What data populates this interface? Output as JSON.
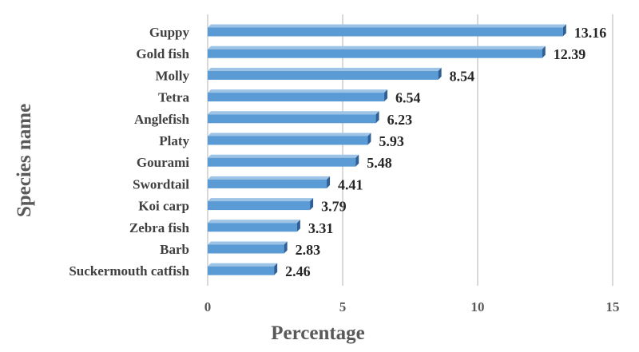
{
  "chart_data": {
    "type": "bar",
    "orientation": "horizontal",
    "title": "",
    "xlabel": "Percentage",
    "ylabel": "Species name",
    "categories": [
      "Guppy",
      "Gold fish",
      "Molly",
      "Tetra",
      "Anglefish",
      "Platy",
      "Gourami",
      "Swordtail",
      "Koi carp",
      "Zebra fish",
      "Barb",
      "Suckermouth catfish"
    ],
    "series": [
      {
        "values": [
          13.16,
          12.39,
          8.54,
          6.54,
          6.23,
          5.93,
          5.48,
          4.41,
          3.79,
          3.31,
          2.83,
          2.46
        ],
        "data_labels": [
          "13.16",
          "12.39",
          "8.54",
          "6.54",
          "6.23",
          "5.93",
          "5.48",
          "4.41",
          "3.79",
          "3.31",
          "2.83",
          "2.46"
        ],
        "color": "#5b9bd5"
      }
    ],
    "xlim": [
      0,
      15
    ],
    "xticks": [
      0,
      5,
      10,
      15
    ],
    "xtick_labels": [
      "0",
      "5",
      "10",
      "15"
    ],
    "grid": true,
    "legend": "none"
  },
  "colors": {
    "bar_front": "#5b9bd5",
    "bar_side": "#2e5f96",
    "bar_top": "#9dc3e6",
    "gridline": "#d9d9d9"
  }
}
